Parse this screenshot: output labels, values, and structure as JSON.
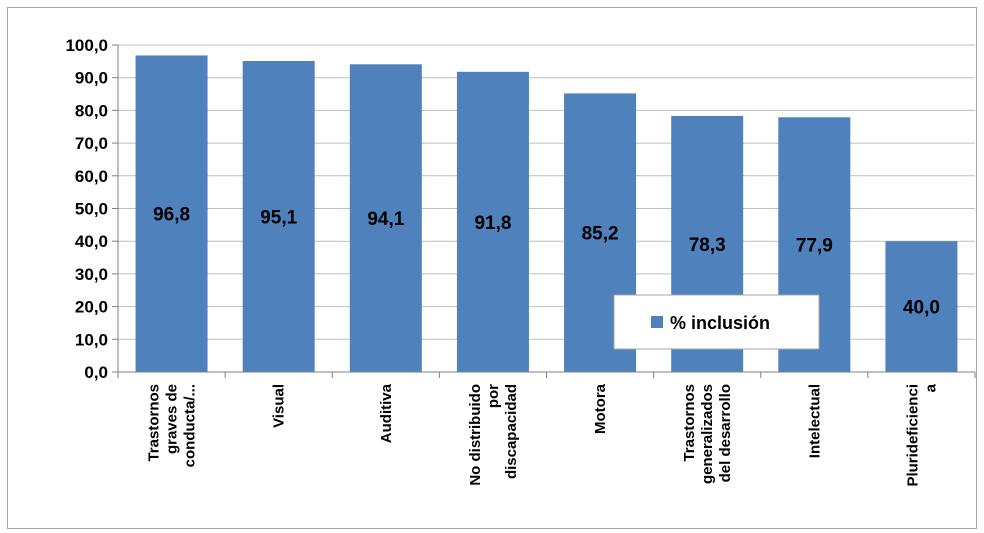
{
  "chart_data": {
    "type": "bar",
    "categories": [
      [
        "Trastornos",
        "graves de",
        "conducta/..."
      ],
      [
        "Visual"
      ],
      [
        "Auditiva"
      ],
      [
        "No distribuido",
        "por",
        "discapacidad"
      ],
      [
        "Motora"
      ],
      [
        "Trastornos",
        "generalizados",
        "del desarrollo"
      ],
      [
        "Intelectual"
      ],
      [
        "Plurideficienci",
        "a"
      ]
    ],
    "series": [
      {
        "name": "% inclusión",
        "values": [
          96.8,
          95.1,
          94.1,
          91.8,
          85.2,
          78.3,
          77.9,
          40.0
        ],
        "labels": [
          "96,8",
          "95,1",
          "94,1",
          "91,8",
          "85,2",
          "78,3",
          "77,9",
          "40,0"
        ],
        "color": "#4f81bd"
      }
    ],
    "ylim": [
      0,
      100
    ],
    "yticks": [
      "0,0",
      "10,0",
      "20,0",
      "30,0",
      "40,0",
      "50,0",
      "60,0",
      "70,0",
      "80,0",
      "90,0",
      "100,0"
    ],
    "grid": true,
    "legend_position": "bottom-right"
  },
  "legend": {
    "label": "% inclusión"
  }
}
